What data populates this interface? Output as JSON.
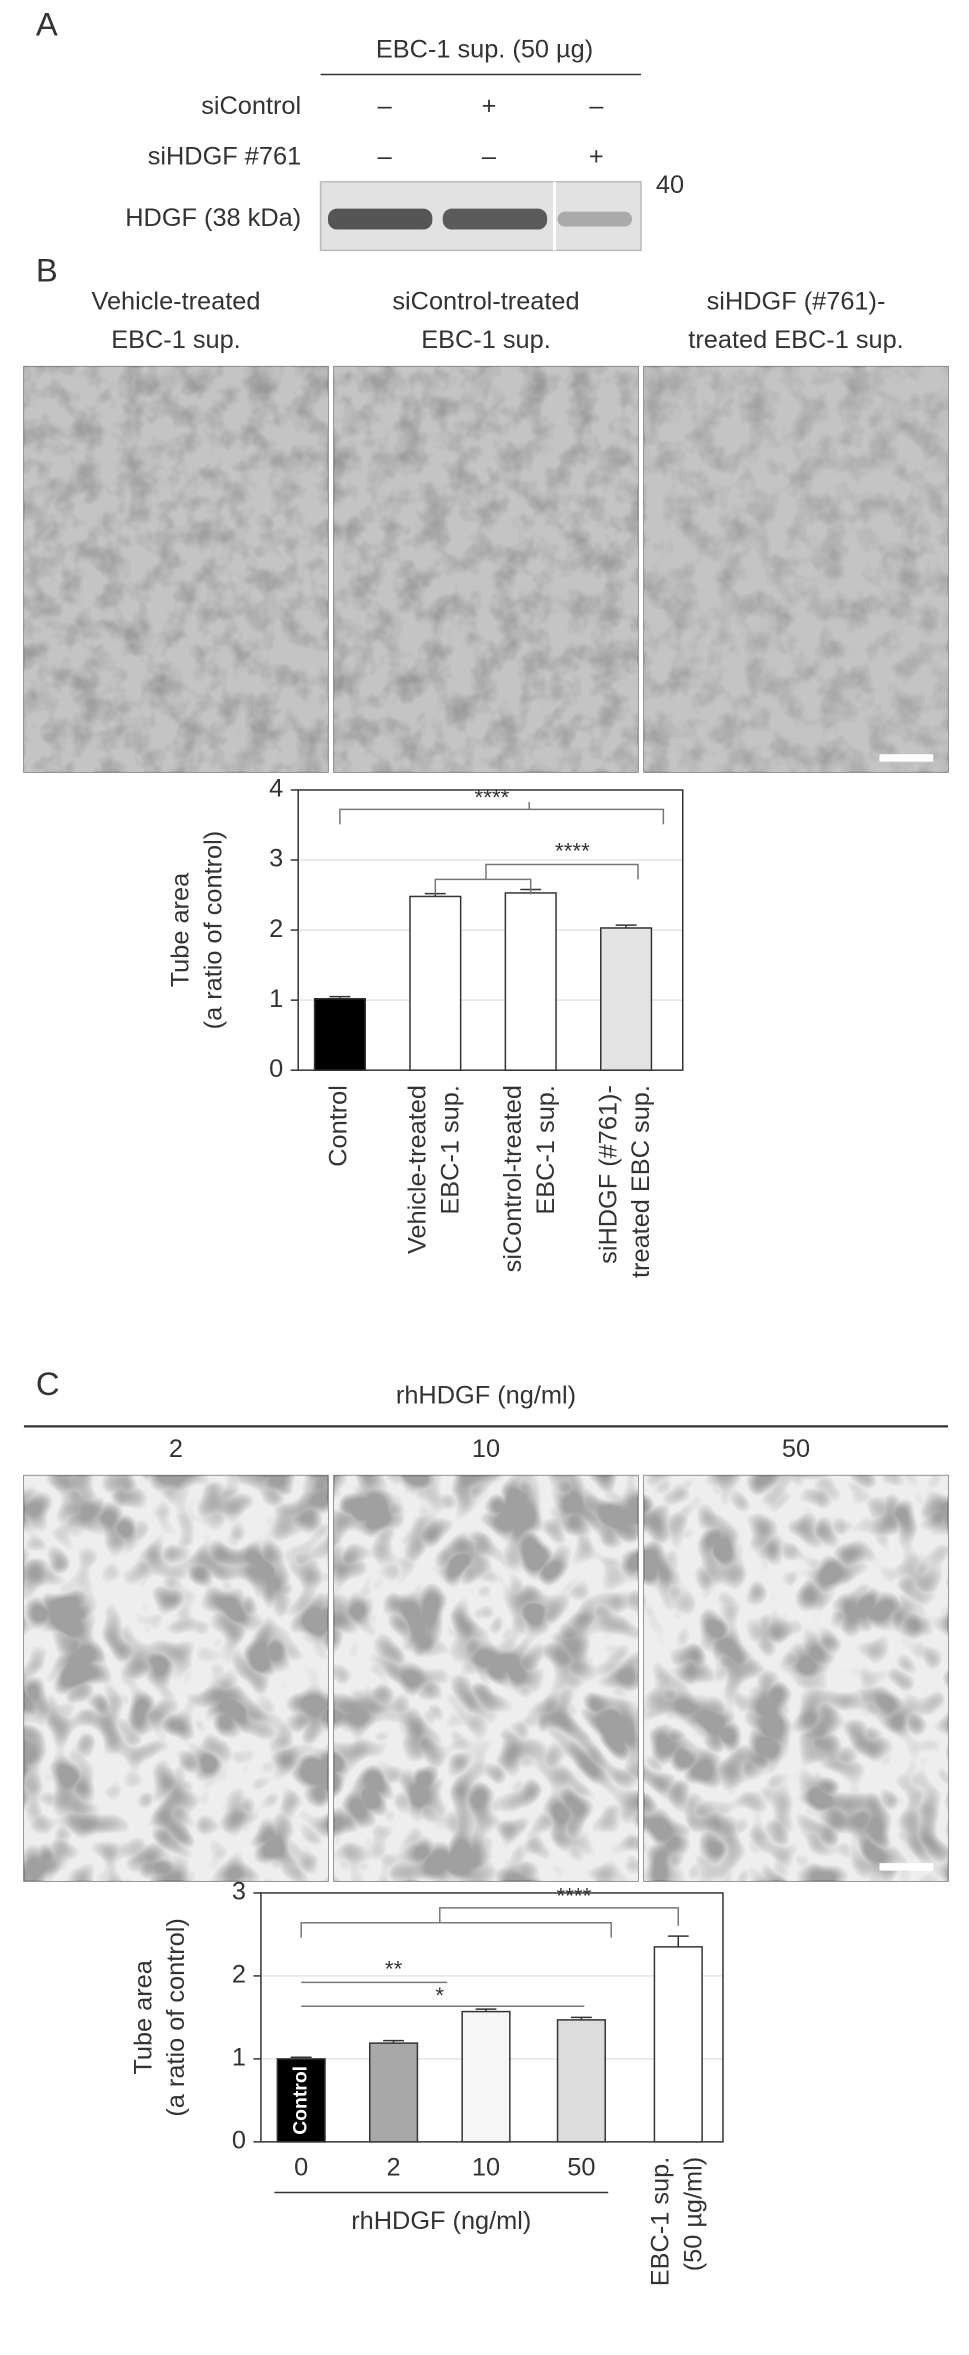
{
  "panel_a": {
    "label": "A",
    "header": "EBC-1 sup. (50 µg)",
    "rows": [
      {
        "label": "siControl",
        "marks": [
          "–",
          "+",
          "–"
        ]
      },
      {
        "label": "siHDGF #761",
        "marks": [
          "–",
          "–",
          "+"
        ]
      }
    ],
    "blot_label": "HDGF (38 kDa)",
    "marker": "40"
  },
  "panel_b": {
    "label": "B",
    "captions": [
      [
        "Vehicle-treated",
        "EBC-1 sup."
      ],
      [
        "siControl-treated",
        "EBC-1 sup."
      ],
      [
        "siHDGF (#761)-",
        "treated EBC-1 sup."
      ]
    ]
  },
  "panel_c": {
    "label": "C",
    "header": "rhHDGF (ng/ml)",
    "captions": [
      "2",
      "10",
      "50"
    ]
  },
  "chart_data": [
    {
      "type": "bar",
      "ylabel": [
        "Tube area",
        "(a ratio of control)"
      ],
      "categories": [
        [
          "Control"
        ],
        [
          "Vehicle-treated",
          "EBC-1 sup."
        ],
        [
          "siControl-treated",
          "EBC-1 sup."
        ],
        [
          "siHDGF (#761)-",
          "treated EBC sup."
        ]
      ],
      "values": [
        1.02,
        2.48,
        2.53,
        2.03
      ],
      "errors": [
        0.03,
        0.04,
        0.05,
        0.04
      ],
      "colors": [
        "#000000",
        "#ffffff",
        "#ffffff",
        "#e4e4e4"
      ],
      "ylim": [
        0,
        4
      ],
      "yticks": [
        0,
        1,
        2,
        3,
        4
      ],
      "grid": true,
      "annotations": [
        "****",
        "****"
      ]
    },
    {
      "type": "bar",
      "ylabel": [
        "Tube area",
        "(a ratio of control)"
      ],
      "categories": [
        [
          "0"
        ],
        [
          "2"
        ],
        [
          "10"
        ],
        [
          "50"
        ],
        [
          "EBC-1 sup.",
          "(50 µg/ml)"
        ]
      ],
      "bar_text": "Control",
      "group_label": "rhHDGF (ng/ml)",
      "values": [
        1.0,
        1.19,
        1.57,
        1.47,
        2.35
      ],
      "errors": [
        0.02,
        0.03,
        0.03,
        0.03,
        0.13
      ],
      "colors": [
        "#000000",
        "#a8a8a8",
        "#f6f6f6",
        "#dcdcdc",
        "#ffffff"
      ],
      "ylim": [
        0,
        3
      ],
      "yticks": [
        0,
        1,
        2,
        3
      ],
      "grid": true,
      "annotations": [
        "****",
        "**",
        "*"
      ]
    }
  ]
}
